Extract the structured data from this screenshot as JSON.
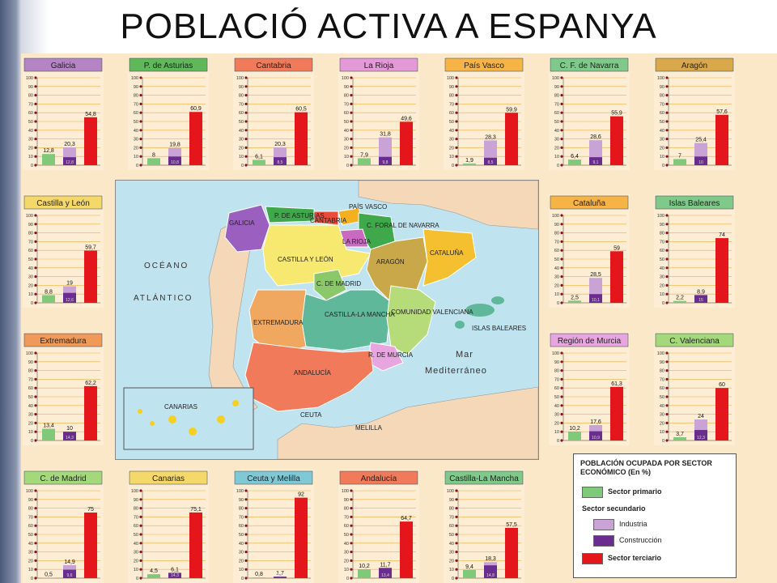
{
  "title": "POBLACIÓ ACTIVA A ESPANYA",
  "colors": {
    "primary": "#7fc97a",
    "industry": "#c9a3d6",
    "construction": "#6a2c8f",
    "tertiary": "#e5161b",
    "panel_bg": "#fcedd4",
    "guide": "#f0b040"
  },
  "yticks": [
    "100",
    "90",
    "80",
    "70",
    "60",
    "50",
    "40",
    "30",
    "20",
    "10",
    "0"
  ],
  "chart_data": [
    {
      "type": "bar",
      "region": "Galicia",
      "header_color": "#b484c4",
      "values": {
        "primary": 12.8,
        "industry": "",
        "construction": "12,8",
        "secondary": 20.3,
        "tertiary": 54.8
      },
      "labels": {
        "primary": "12,8",
        "secondary": "20,3",
        "construction": "12,8",
        "tertiary": "54,8"
      },
      "sec_split": 0.45
    },
    {
      "type": "bar",
      "region": "P. de Asturias",
      "header_color": "#5fb85a",
      "values": {
        "primary": 8,
        "secondary": 19.8,
        "tertiary": 60.9
      },
      "labels": {
        "primary": "8",
        "secondary": "19,8",
        "construction": "10,8",
        "tertiary": "60,9"
      },
      "sec_split": 0.5
    },
    {
      "type": "bar",
      "region": "Cantabria",
      "header_color": "#f07a5a",
      "values": {
        "primary": 6.1,
        "secondary": 20.3,
        "tertiary": 60.5
      },
      "labels": {
        "primary": "6,1",
        "secondary": "20,3",
        "construction": "8,5",
        "tertiary": "60,5"
      },
      "sec_split": 0.45
    },
    {
      "type": "bar",
      "region": "La Rioja",
      "header_color": "#e39ad6",
      "values": {
        "primary": 7.9,
        "secondary": 31.8,
        "tertiary": 49.6
      },
      "labels": {
        "primary": "7,9",
        "secondary": "31,8",
        "construction": "9,8",
        "tertiary": "49,6"
      },
      "sec_split": 0.3
    },
    {
      "type": "bar",
      "region": "País Vasco",
      "header_color": "#f5b445",
      "values": {
        "primary": 1.9,
        "secondary": 28.3,
        "tertiary": 59.9
      },
      "labels": {
        "primary": "1,9",
        "secondary": "28,3",
        "construction": "8,5",
        "tertiary": "59,9"
      },
      "sec_split": 0.3
    },
    {
      "type": "bar",
      "region": "C. F. de Navarra",
      "header_color": "#7fc98a",
      "values": {
        "primary": 6.4,
        "secondary": 28.6,
        "tertiary": 55.9
      },
      "labels": {
        "primary": "6,4",
        "secondary": "28,6",
        "construction": "9,1",
        "tertiary": "55,9"
      },
      "sec_split": 0.32
    },
    {
      "type": "bar",
      "region": "Aragón",
      "header_color": "#d8a84a",
      "values": {
        "primary": 7,
        "secondary": 25.4,
        "tertiary": 57.6
      },
      "labels": {
        "primary": "7",
        "secondary": "25,4",
        "construction": "10",
        "tertiary": "57,6"
      },
      "sec_split": 0.39
    },
    {
      "type": "bar",
      "region": "Castilla y León",
      "header_color": "#f5d86a",
      "values": {
        "primary": 8.8,
        "secondary": 19,
        "tertiary": 59.7
      },
      "labels": {
        "primary": "8,8",
        "secondary": "19",
        "construction": "12,6",
        "tertiary": "59,7"
      },
      "sec_split": 0.6
    },
    {
      "type": "bar",
      "region": "Cataluña",
      "header_color": "#f5b445",
      "values": {
        "primary": 2.5,
        "secondary": 28.5,
        "tertiary": 59
      },
      "labels": {
        "primary": "2,5",
        "secondary": "28,5",
        "construction": "10,1",
        "tertiary": "59"
      },
      "sec_split": 0.35
    },
    {
      "type": "bar",
      "region": "Islas Baleares",
      "header_color": "#7fc98a",
      "values": {
        "primary": 2.2,
        "secondary": 8.9,
        "tertiary": 74
      },
      "labels": {
        "primary": "2,2",
        "secondary": "8,9",
        "construction": "15",
        "tertiary": "74"
      },
      "sec_split": 1.0
    },
    {
      "type": "bar",
      "region": "Extremadura",
      "header_color": "#f09a5a",
      "values": {
        "primary": 13.4,
        "secondary": 10,
        "tertiary": 62.2
      },
      "labels": {
        "primary": "13,4",
        "secondary": "10",
        "construction": "14,3",
        "tertiary": "62,2"
      },
      "sec_split": 1.0
    },
    {
      "type": "bar",
      "region": "Región de Murcia",
      "header_color": "#e7a6e0",
      "values": {
        "primary": 10.2,
        "secondary": 17.6,
        "tertiary": 61.3
      },
      "labels": {
        "primary": "10,2",
        "secondary": "17,6",
        "construction": "10,9",
        "tertiary": "61,3"
      },
      "sec_split": 0.6
    },
    {
      "type": "bar",
      "region": "C. Valenciana",
      "header_color": "#a3d97a",
      "values": {
        "primary": 3.7,
        "secondary": 24,
        "tertiary": 60
      },
      "labels": {
        "primary": "3,7",
        "secondary": "24",
        "construction": "12,3",
        "tertiary": "60"
      },
      "sec_split": 0.5
    },
    {
      "type": "bar",
      "region": "C. de Madrid",
      "header_color": "#a3d97a",
      "values": {
        "primary": 0.5,
        "secondary": 14.9,
        "tertiary": 75
      },
      "labels": {
        "primary": "0,5",
        "secondary": "14,9",
        "construction": "9,6",
        "tertiary": "75"
      },
      "sec_split": 0.65
    },
    {
      "type": "bar",
      "region": "Canarias",
      "header_color": "#f5d86a",
      "values": {
        "primary": 4.5,
        "secondary": 6.1,
        "tertiary": 75.1
      },
      "labels": {
        "primary": "4,5",
        "secondary": "6,1",
        "construction": "14,3",
        "tertiary": "75,1"
      },
      "sec_split": 1.0
    },
    {
      "type": "bar",
      "region": "Ceuta y Melilla",
      "header_color": "#7fc9d6",
      "values": {
        "primary": 0.8,
        "secondary": 1.7,
        "tertiary": 92
      },
      "labels": {
        "primary": "0,8",
        "secondary": "1,7",
        "construction": "6,6",
        "tertiary": "92"
      },
      "sec_split": 1.0
    },
    {
      "type": "bar",
      "region": "Andalucía",
      "header_color": "#f07a5a",
      "values": {
        "primary": 10.2,
        "secondary": 11.7,
        "tertiary": 64.7
      },
      "labels": {
        "primary": "10,2",
        "secondary": "11,7",
        "construction": "13,4",
        "tertiary": "64,7"
      },
      "sec_split": 1.0
    },
    {
      "type": "bar",
      "region": "Castilla-La Mancha",
      "header_color": "#7fc98a",
      "values": {
        "primary": 9.4,
        "secondary": 18.3,
        "tertiary": 57.5
      },
      "labels": {
        "primary": "9,4",
        "secondary": "18,3",
        "construction": "14,8",
        "tertiary": "57,5"
      },
      "sec_split": 0.8
    }
  ],
  "map": {
    "ocean_labels": [
      "OCÉANO",
      "ATLÁNTICO",
      "Mar",
      "Mediterráneo"
    ],
    "regions": [
      "GALICIA",
      "P. DE ASTURIAS",
      "CANTABRIA",
      "PAÍS VASCO",
      "C. FORAL DE NAVARRA",
      "LA RIOJA",
      "CASTILLA Y LEÓN",
      "ARAGÓN",
      "CATALUÑA",
      "C. DE MADRID",
      "CASTILLA-LA MANCHA",
      "EXTREMADURA",
      "COMUNIDAD VALENCIANA",
      "ISLAS BALEARES",
      "R. DE MURCIA",
      "ANDALUCÍA",
      "CEUTA",
      "MELILLA",
      "CANARIAS"
    ]
  },
  "legend": {
    "header": "POBLACIÓN OCUPADA POR SECTOR ECONÓMICO (En %)",
    "primary": "Sector primario",
    "secondary": "Sector secundario",
    "industry": "Industria",
    "construction": "Construcción",
    "tertiary": "Sector terciario"
  }
}
